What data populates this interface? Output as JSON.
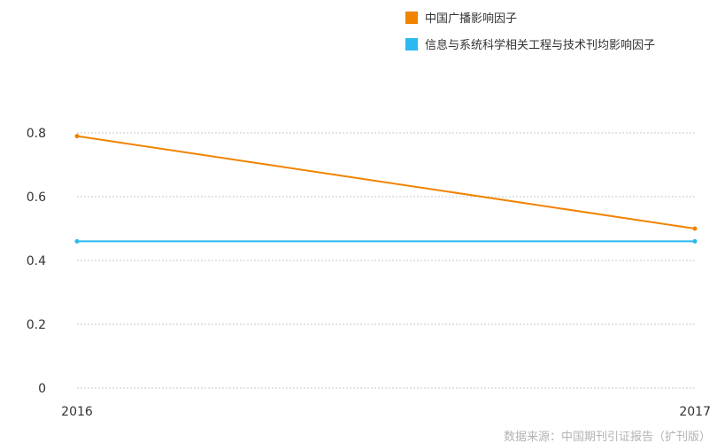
{
  "chart_data": {
    "type": "line",
    "x": [
      "2016",
      "2017"
    ],
    "series": [
      {
        "name": "中国广播影响因子",
        "values": [
          0.79,
          0.5
        ],
        "color": "#f08300"
      },
      {
        "name": "信息与系统科学相关工程与技术刊均影响因子",
        "values": [
          0.46,
          0.46
        ],
        "color": "#2ab9f0"
      }
    ],
    "yticks": [
      "0",
      "0.2",
      "0.4",
      "0.6",
      "0.8"
    ],
    "ylim": [
      0,
      0.8
    ],
    "grid": true,
    "legend_position": "top-right"
  },
  "source_text": "数据来源：中国期刊引证报告（扩刊版）"
}
